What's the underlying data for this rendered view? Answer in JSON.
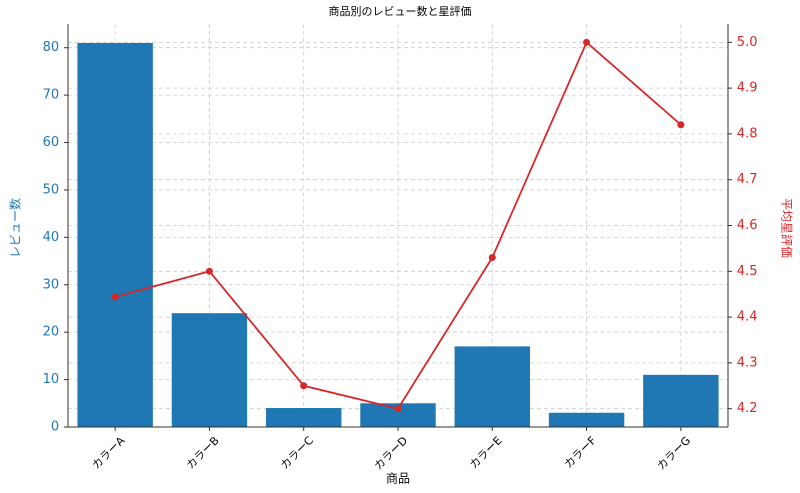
{
  "chart_data": {
    "type": "bar_line",
    "title": "商品別のレビュー数と星評価",
    "x_label": "商品",
    "y_label": "レビュー数",
    "y2_label": "平均星評価",
    "categories": [
      "カラーA",
      "カラーB",
      "カラーC",
      "カラーD",
      "カラーE",
      "カラーF",
      "カラーG"
    ],
    "series": [
      {
        "name": "レビュー数",
        "type": "bar",
        "color": "#1f77b4",
        "values": [
          81,
          24,
          4,
          5,
          17,
          3,
          11
        ]
      },
      {
        "name": "平均星評価",
        "type": "line",
        "axis": "y2",
        "color": "#d62728",
        "values": [
          4.444,
          4.5,
          4.25,
          4.2,
          4.53,
          5.0,
          4.82
        ]
      }
    ],
    "ylim": [
      0,
      85
    ],
    "yticks": [
      0,
      10,
      20,
      30,
      40,
      50,
      60,
      70,
      80
    ],
    "y2lim": [
      4.16,
      5.04
    ],
    "y2ticks": [
      4.2,
      4.3,
      4.4,
      4.5,
      4.6,
      4.7,
      4.8,
      4.9,
      {
        "value": 5.0,
        "label": "5.0"
      }
    ],
    "grid": true
  }
}
